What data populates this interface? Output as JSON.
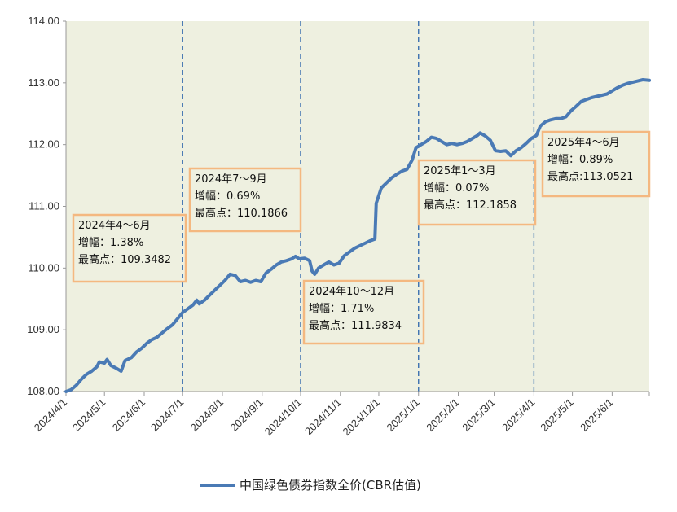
{
  "chart_data": {
    "type": "line",
    "title": "",
    "xlabel": "",
    "ylabel": "",
    "ylim": [
      108.0,
      114.0
    ],
    "y_ticks": [
      "108.00",
      "109.00",
      "110.00",
      "111.00",
      "112.00",
      "113.00",
      "114.00"
    ],
    "x_ticks": [
      "2024/4/1",
      "2024/5/1",
      "2024/6/1",
      "2024/7/1",
      "2024/8/1",
      "2024/9/1",
      "2024/10/1",
      "2024/11/1",
      "2024/12/1",
      "2025/1/1",
      "2025/2/1",
      "2025/3/1",
      "2025/4/1",
      "2025/5/1",
      "2025/6/1"
    ],
    "x_range": [
      "2024/4/1",
      "2025/6/30"
    ],
    "quarter_dividers": [
      "2024/7/1",
      "2024/10/1",
      "2025/1/1",
      "2025/4/1"
    ],
    "plot_background": "#eef0e0",
    "grid": false,
    "legend_position": "bottom",
    "series": [
      {
        "name": "中国绿色债券指数全价(CBR估值)",
        "color": "#4a7ab5",
        "points": [
          [
            "2024/4/1",
            108.0
          ],
          [
            "2024/4/5",
            108.03
          ],
          [
            "2024/4/9",
            108.1
          ],
          [
            "2024/4/13",
            108.2
          ],
          [
            "2024/4/17",
            108.28
          ],
          [
            "2024/4/21",
            108.33
          ],
          [
            "2024/4/25",
            108.4
          ],
          [
            "2024/4/27",
            108.48
          ],
          [
            "2024/5/1",
            108.46
          ],
          [
            "2024/5/3",
            108.52
          ],
          [
            "2024/5/6",
            108.42
          ],
          [
            "2024/5/10",
            108.38
          ],
          [
            "2024/5/14",
            108.33
          ],
          [
            "2024/5/17",
            108.5
          ],
          [
            "2024/5/22",
            108.55
          ],
          [
            "2024/5/26",
            108.64
          ],
          [
            "2024/5/30",
            108.7
          ],
          [
            "2024/6/3",
            108.78
          ],
          [
            "2024/6/7",
            108.84
          ],
          [
            "2024/6/11",
            108.88
          ],
          [
            "2024/6/15",
            108.95
          ],
          [
            "2024/6/19",
            109.02
          ],
          [
            "2024/6/23",
            109.08
          ],
          [
            "2024/6/27",
            109.18
          ],
          [
            "2024/7/1",
            109.28
          ],
          [
            "2024/7/5",
            109.34
          ],
          [
            "2024/7/9",
            109.4
          ],
          [
            "2024/7/12",
            109.48
          ],
          [
            "2024/7/14",
            109.42
          ],
          [
            "2024/7/18",
            109.48
          ],
          [
            "2024/7/22",
            109.56
          ],
          [
            "2024/7/26",
            109.64
          ],
          [
            "2024/7/30",
            109.72
          ],
          [
            "2024/8/3",
            109.8
          ],
          [
            "2024/8/7",
            109.9
          ],
          [
            "2024/8/11",
            109.88
          ],
          [
            "2024/8/15",
            109.78
          ],
          [
            "2024/8/19",
            109.8
          ],
          [
            "2024/8/23",
            109.77
          ],
          [
            "2024/8/27",
            109.8
          ],
          [
            "2024/8/31",
            109.78
          ],
          [
            "2024/9/4",
            109.92
          ],
          [
            "2024/9/8",
            109.98
          ],
          [
            "2024/9/12",
            110.05
          ],
          [
            "2024/9/16",
            110.1
          ],
          [
            "2024/9/20",
            110.12
          ],
          [
            "2024/9/24",
            110.15
          ],
          [
            "2024/9/27",
            110.19
          ],
          [
            "2024/9/30",
            110.15
          ],
          [
            "2024/10/4",
            110.16
          ],
          [
            "2024/10/8",
            110.12
          ],
          [
            "2024/10/10",
            109.95
          ],
          [
            "2024/10/12",
            109.9
          ],
          [
            "2024/10/15",
            110.0
          ],
          [
            "2024/10/19",
            110.05
          ],
          [
            "2024/10/23",
            110.1
          ],
          [
            "2024/10/27",
            110.05
          ],
          [
            "2024/10/31",
            110.08
          ],
          [
            "2024/11/4",
            110.2
          ],
          [
            "2024/11/8",
            110.26
          ],
          [
            "2024/11/12",
            110.32
          ],
          [
            "2024/11/16",
            110.36
          ],
          [
            "2024/11/20",
            110.4
          ],
          [
            "2024/11/24",
            110.44
          ],
          [
            "2024/11/28",
            110.47
          ],
          [
            "2024/11/29",
            111.05
          ],
          [
            "2024/12/3",
            111.3
          ],
          [
            "2024/12/7",
            111.38
          ],
          [
            "2024/12/11",
            111.46
          ],
          [
            "2024/12/15",
            111.52
          ],
          [
            "2024/12/19",
            111.57
          ],
          [
            "2024/12/23",
            111.6
          ],
          [
            "2024/12/27",
            111.75
          ],
          [
            "2024/12/30",
            111.95
          ],
          [
            "2025/1/3",
            112.0
          ],
          [
            "2025/1/7",
            112.05
          ],
          [
            "2025/1/11",
            112.12
          ],
          [
            "2025/1/15",
            112.1
          ],
          [
            "2025/1/19",
            112.05
          ],
          [
            "2025/1/23",
            112.0
          ],
          [
            "2025/1/27",
            112.02
          ],
          [
            "2025/1/31",
            112.0
          ],
          [
            "2025/2/4",
            112.02
          ],
          [
            "2025/2/8",
            112.05
          ],
          [
            "2025/2/12",
            112.1
          ],
          [
            "2025/2/16",
            112.15
          ],
          [
            "2025/2/18",
            112.19
          ],
          [
            "2025/2/22",
            112.14
          ],
          [
            "2025/2/26",
            112.07
          ],
          [
            "2025/3/2",
            111.9
          ],
          [
            "2025/3/6",
            111.89
          ],
          [
            "2025/3/10",
            111.9
          ],
          [
            "2025/3/14",
            111.82
          ],
          [
            "2025/3/18",
            111.9
          ],
          [
            "2025/3/22",
            111.95
          ],
          [
            "2025/3/26",
            112.02
          ],
          [
            "2025/3/30",
            112.1
          ],
          [
            "2025/4/3",
            112.15
          ],
          [
            "2025/4/6",
            112.3
          ],
          [
            "2025/4/10",
            112.37
          ],
          [
            "2025/4/14",
            112.4
          ],
          [
            "2025/4/18",
            112.42
          ],
          [
            "2025/4/22",
            112.42
          ],
          [
            "2025/4/26",
            112.45
          ],
          [
            "2025/4/30",
            112.55
          ],
          [
            "2025/5/4",
            112.62
          ],
          [
            "2025/5/8",
            112.7
          ],
          [
            "2025/5/12",
            112.73
          ],
          [
            "2025/5/16",
            112.76
          ],
          [
            "2025/5/20",
            112.78
          ],
          [
            "2025/5/24",
            112.8
          ],
          [
            "2025/5/28",
            112.82
          ],
          [
            "2025/6/1",
            112.87
          ],
          [
            "2025/6/5",
            112.92
          ],
          [
            "2025/6/9",
            112.96
          ],
          [
            "2025/6/13",
            112.99
          ],
          [
            "2025/6/17",
            113.01
          ],
          [
            "2025/6/21",
            113.03
          ],
          [
            "2025/6/25",
            113.05
          ],
          [
            "2025/6/30",
            113.04
          ]
        ]
      }
    ],
    "annotations": [
      {
        "lines": [
          "2024年4～6月",
          "增幅：1.38%",
          "最高点：109.3482"
        ],
        "border_color": "#f4b880"
      },
      {
        "lines": [
          "2024年7～9月",
          "增幅：0.69%",
          "最高点：110.1866"
        ],
        "border_color": "#f4b880"
      },
      {
        "lines": [
          "2024年10～12月",
          "增幅：1.71%",
          "最高点：111.9834"
        ],
        "border_color": "#f4b880"
      },
      {
        "lines": [
          "2025年1～3月",
          "增幅：0.07%",
          "最高点：112.1858"
        ],
        "border_color": "#f4b880"
      },
      {
        "lines": [
          "2025年4～6月",
          "增幅：0.89%",
          "最高点:113.0521"
        ],
        "border_color": "#f4b880"
      }
    ]
  }
}
